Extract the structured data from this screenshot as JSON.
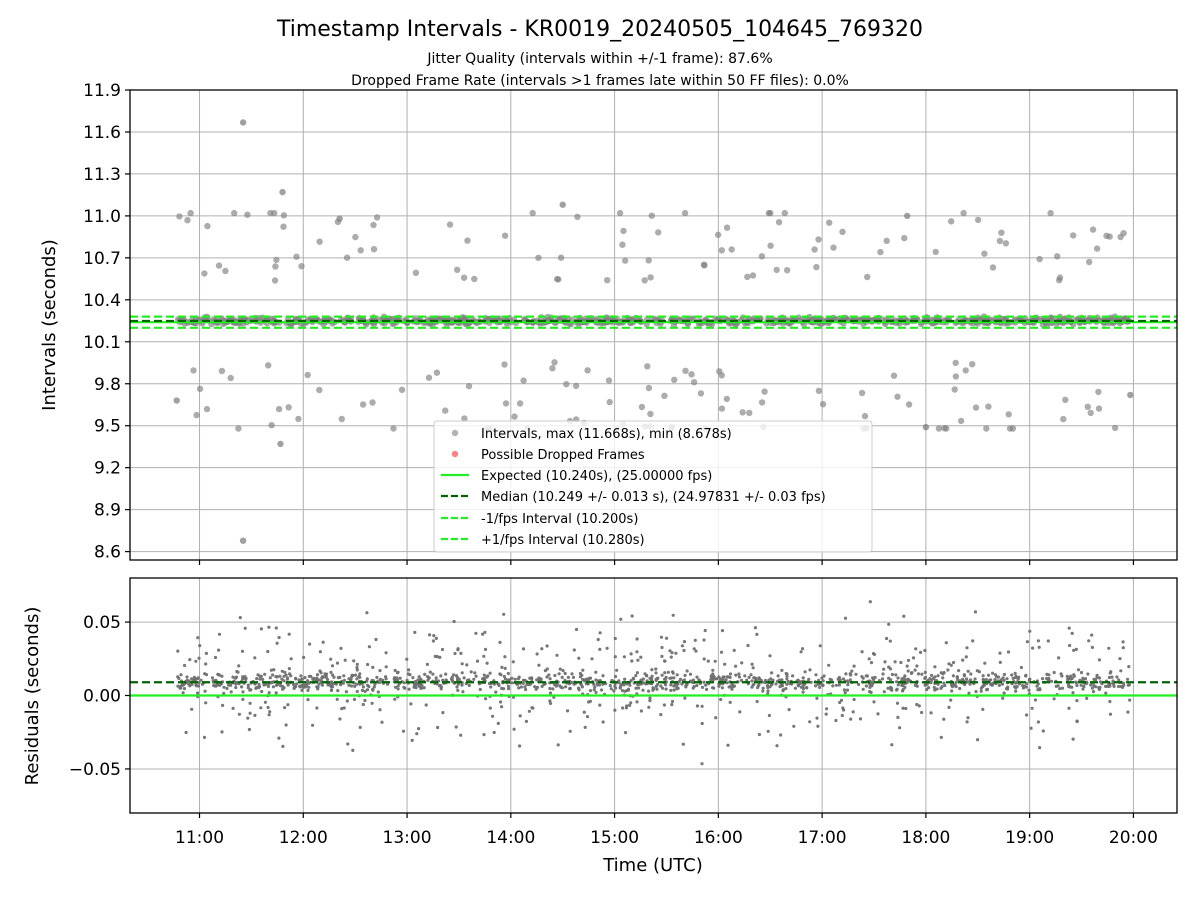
{
  "chart_data": {
    "type": "scatter",
    "title": "Timestamp Intervals - KR0019_20240505_104645_769320",
    "subtitles": [
      "Jitter Quality (intervals within +/-1 frame): 87.6%",
      "Dropped Frame Rate (intervals >1 frames late within 50 FF files): 0.0%"
    ],
    "xlabel": "Time (UTC)",
    "x_ticks": [
      "11:00",
      "12:00",
      "13:00",
      "14:00",
      "15:00",
      "16:00",
      "17:00",
      "18:00",
      "19:00",
      "20:00"
    ],
    "xlim_hours": [
      10.33,
      20.42
    ],
    "grid": true,
    "legend_position": "lower center",
    "panels": [
      {
        "name": "intervals",
        "ylabel": "Intervals (seconds)",
        "ylim": [
          8.54,
          11.9
        ],
        "y_ticks": [
          "8.6",
          "8.9",
          "9.2",
          "9.5",
          "9.8",
          "10.1",
          "10.4",
          "10.7",
          "11.0",
          "11.3",
          "11.6",
          "11.9"
        ],
        "series": [
          {
            "name": "Intervals, max (11.668s), min (8.678s)",
            "kind": "scatter",
            "color": "#808080",
            "x_range_hours": [
              10.78,
              19.97
            ],
            "max": 11.668,
            "min": 8.678,
            "points": [
              {
                "x": 11.42,
                "y": 11.668
              },
              {
                "x": 11.42,
                "y": 8.678
              },
              {
                "x": 11.8,
                "y": 11.17
              },
              {
                "x": 12.35,
                "y": 10.98
              },
              {
                "x": 14.5,
                "y": 11.08
              },
              {
                "x": 17.82,
                "y": 11.0
              },
              {
                "x": 11.78,
                "y": 9.37
              },
              {
                "x": 10.78,
                "y": 9.68
              },
              {
                "x": 19.97,
                "y": 9.72
              },
              {
                "x": 18.0,
                "y": 9.49
              }
            ]
          },
          {
            "name": "Possible Dropped Frames",
            "kind": "scatter",
            "color": "#ff4d4d",
            "points": []
          },
          {
            "name": "Expected (10.240s), (25.00000 fps)",
            "kind": "hline",
            "y": 10.24,
            "color": "#22ee22",
            "style": "solid"
          },
          {
            "name": "Median (10.249 +/- 0.013 s), (24.97831 +/- 0.03 fps)",
            "kind": "hline",
            "y": 10.249,
            "color": "#006400",
            "style": "dashed"
          },
          {
            "name": "-1/fps Interval (10.200s)",
            "kind": "hline",
            "y": 10.2,
            "color": "#22ee22",
            "style": "dashed"
          },
          {
            "name": "+1/fps Interval (10.280s)",
            "kind": "hline",
            "y": 10.28,
            "color": "#22ee22",
            "style": "dashed"
          }
        ]
      },
      {
        "name": "residuals",
        "ylabel": "Residuals (seconds)",
        "ylim": [
          -0.08,
          0.08
        ],
        "y_ticks": [
          "−0.05",
          "0.00",
          "0.05"
        ],
        "y_tick_values": [
          -0.05,
          0.0,
          0.05
        ],
        "series": [
          {
            "name": "Residuals",
            "kind": "scatter",
            "color": "#707070"
          },
          {
            "name": "Zero",
            "kind": "hline",
            "y": 0.0,
            "color": "#22ee22",
            "style": "solid"
          },
          {
            "name": "Median residual",
            "kind": "hline",
            "y": 0.009,
            "color": "#006400",
            "style": "dashed"
          }
        ]
      }
    ]
  }
}
